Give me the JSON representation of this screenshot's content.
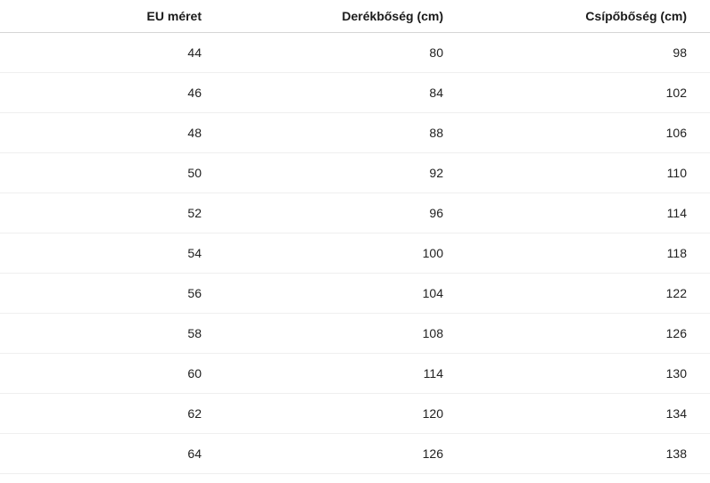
{
  "colors": {
    "background": "#ffffff",
    "header_text": "#1a1a1a",
    "cell_text": "#212121",
    "header_border": "#d6d6d6",
    "row_border": "#efefef"
  },
  "table": {
    "headers": [
      "EU méret",
      "Derékbőség (cm)",
      "Csípőbőség (cm)"
    ],
    "rows": [
      [
        "44",
        "80",
        "98"
      ],
      [
        "46",
        "84",
        "102"
      ],
      [
        "48",
        "88",
        "106"
      ],
      [
        "50",
        "92",
        "110"
      ],
      [
        "52",
        "96",
        "114"
      ],
      [
        "54",
        "100",
        "118"
      ],
      [
        "56",
        "104",
        "122"
      ],
      [
        "58",
        "108",
        "126"
      ],
      [
        "60",
        "114",
        "130"
      ],
      [
        "62",
        "120",
        "134"
      ],
      [
        "64",
        "126",
        "138"
      ]
    ]
  },
  "chart_data": {
    "type": "table",
    "title": "",
    "columns": [
      "EU méret",
      "Derékbőség (cm)",
      "Csípőbőség (cm)"
    ],
    "rows": [
      [
        44,
        80,
        98
      ],
      [
        46,
        84,
        102
      ],
      [
        48,
        88,
        106
      ],
      [
        50,
        92,
        110
      ],
      [
        52,
        96,
        114
      ],
      [
        54,
        100,
        118
      ],
      [
        56,
        104,
        122
      ],
      [
        58,
        108,
        126
      ],
      [
        60,
        114,
        130
      ],
      [
        62,
        120,
        134
      ],
      [
        64,
        126,
        138
      ]
    ],
    "layout_hints": {
      "alignment": "right",
      "header_bold": true,
      "row_separators": true,
      "background": "white"
    }
  }
}
